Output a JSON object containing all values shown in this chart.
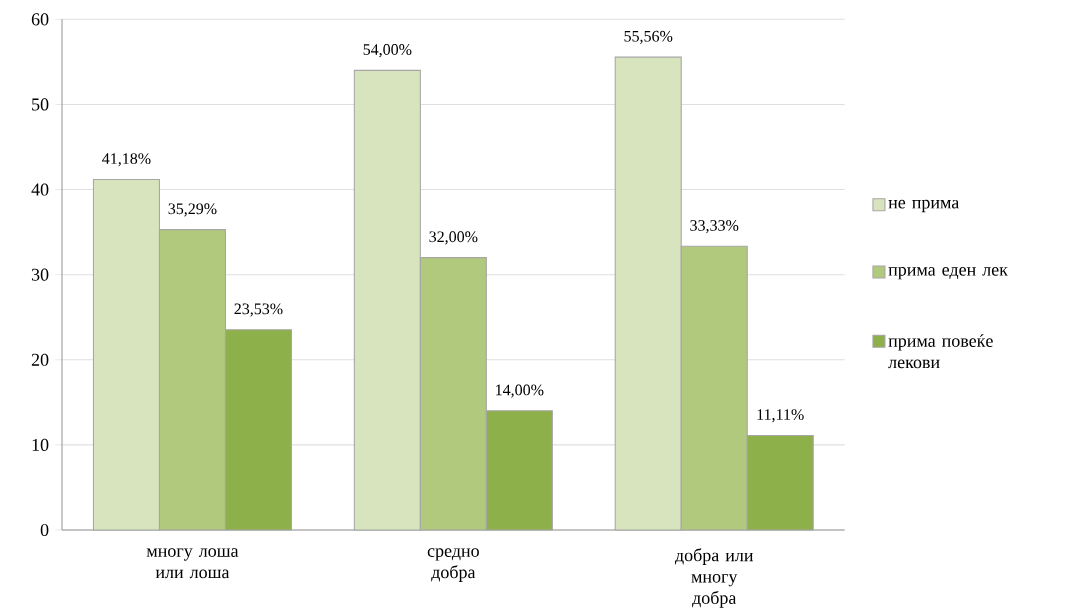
{
  "chart_data": {
    "type": "bar",
    "categories": [
      "многу лоша или лоша",
      "средно добра",
      "добра или многу добра"
    ],
    "series": [
      {
        "name": "не прима",
        "color": "#d7e4bd",
        "values": [
          41.18,
          54.0,
          55.56
        ],
        "value_labels": [
          "41,18%",
          "54,00%",
          "55,56%"
        ]
      },
      {
        "name": "прима еден лек",
        "color": "#b0c97c",
        "values": [
          35.29,
          32.0,
          33.33
        ],
        "value_labels": [
          "35,29%",
          "32,00%",
          "33,33%"
        ]
      },
      {
        "name": "прима повеќе лекови",
        "color": "#8db04a",
        "values": [
          23.53,
          14.0,
          11.11
        ],
        "value_labels": [
          "23,53%",
          "14,00%",
          "11,11%"
        ]
      }
    ],
    "ylim": [
      0,
      60
    ],
    "yticks": [
      0,
      10,
      20,
      30,
      40,
      50,
      60
    ],
    "grid": "y",
    "legend": "right"
  }
}
